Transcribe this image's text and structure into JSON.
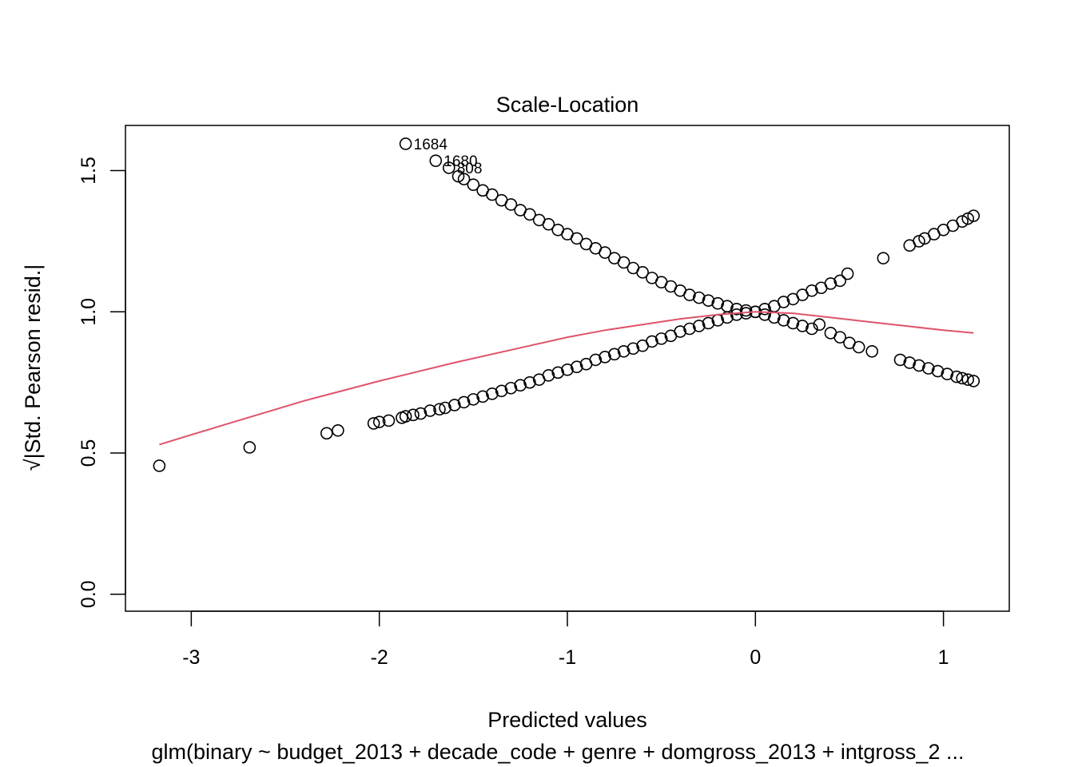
{
  "chart_data": {
    "type": "scatter",
    "title": "Scale-Location",
    "xlabel": "Predicted values",
    "ylabel": "√|Std. Pearson resid.|",
    "subtitle": "glm(binary ~ budget_2013 + decade_code + genre + domgross_2013 + intgross_2 ...",
    "xlim": [
      -3.35,
      1.35
    ],
    "ylim": [
      -0.06,
      1.66
    ],
    "x_ticks": [
      -3,
      -2,
      -1,
      0,
      1
    ],
    "y_ticks": [
      0.0,
      0.5,
      1.0,
      1.5
    ],
    "x_tick_labels": [
      "-3",
      "-2",
      "-1",
      "0",
      "1"
    ],
    "y_tick_labels": [
      "0.0",
      "0.5",
      "1.0",
      "1.5"
    ],
    "grid": false,
    "series": [
      {
        "kind": "points",
        "x": [
          -3.17,
          -2.69,
          -2.28,
          -2.22,
          -2.03,
          -2.0,
          -1.95,
          -1.88,
          -1.86,
          -1.82,
          -1.78,
          -1.73,
          -1.68,
          -1.65,
          -1.6,
          -1.55,
          -1.5,
          -1.45,
          -1.4,
          -1.35,
          -1.3,
          -1.25,
          -1.2,
          -1.15,
          -1.1,
          -1.05,
          -1.0,
          -0.95,
          -0.9,
          -0.85,
          -0.8,
          -0.75,
          -0.7,
          -0.65,
          -0.6,
          -0.55,
          -0.5,
          -0.45,
          -0.4,
          -0.35,
          -0.3,
          -0.25,
          -0.2,
          -0.15,
          -0.1,
          -0.05,
          0.0,
          0.05,
          0.1,
          0.15,
          0.2,
          0.25,
          0.3,
          0.35,
          0.4,
          0.45,
          0.49,
          0.68,
          0.82,
          0.87,
          0.9,
          0.95,
          1.0,
          1.05,
          1.1,
          1.13,
          1.16
        ],
        "y": [
          0.455,
          0.52,
          0.57,
          0.58,
          0.605,
          0.61,
          0.615,
          0.625,
          0.63,
          0.635,
          0.64,
          0.65,
          0.655,
          0.66,
          0.67,
          0.68,
          0.69,
          0.7,
          0.71,
          0.72,
          0.73,
          0.74,
          0.75,
          0.76,
          0.775,
          0.785,
          0.795,
          0.805,
          0.815,
          0.83,
          0.84,
          0.85,
          0.86,
          0.87,
          0.88,
          0.895,
          0.905,
          0.915,
          0.93,
          0.94,
          0.95,
          0.96,
          0.97,
          0.98,
          0.99,
          0.995,
          1.0,
          1.01,
          1.02,
          1.035,
          1.045,
          1.06,
          1.075,
          1.085,
          1.1,
          1.11,
          1.135,
          1.19,
          1.235,
          1.25,
          1.26,
          1.275,
          1.29,
          1.305,
          1.32,
          1.33,
          1.34
        ]
      },
      {
        "kind": "points",
        "x": [
          -1.86,
          -1.7,
          -1.63,
          -1.58,
          -1.55,
          -1.5,
          -1.45,
          -1.4,
          -1.35,
          -1.3,
          -1.25,
          -1.2,
          -1.15,
          -1.1,
          -1.05,
          -1.0,
          -0.95,
          -0.9,
          -0.85,
          -0.8,
          -0.75,
          -0.7,
          -0.65,
          -0.6,
          -0.55,
          -0.5,
          -0.45,
          -0.4,
          -0.35,
          -0.3,
          -0.25,
          -0.2,
          -0.15,
          -0.1,
          -0.05,
          0.0,
          0.05,
          0.1,
          0.15,
          0.2,
          0.25,
          0.3,
          0.34,
          0.4,
          0.45,
          0.5,
          0.55,
          0.62,
          0.77,
          0.82,
          0.87,
          0.92,
          0.97,
          1.02,
          1.07,
          1.1,
          1.13,
          1.16
        ],
        "y": [
          1.595,
          1.535,
          1.51,
          1.48,
          1.47,
          1.45,
          1.43,
          1.415,
          1.395,
          1.38,
          1.36,
          1.345,
          1.325,
          1.31,
          1.29,
          1.275,
          1.26,
          1.24,
          1.225,
          1.21,
          1.19,
          1.175,
          1.155,
          1.14,
          1.12,
          1.105,
          1.09,
          1.075,
          1.06,
          1.05,
          1.04,
          1.03,
          1.02,
          1.01,
          1.005,
          1.0,
          0.99,
          0.98,
          0.97,
          0.96,
          0.95,
          0.94,
          0.955,
          0.925,
          0.91,
          0.89,
          0.875,
          0.86,
          0.83,
          0.82,
          0.81,
          0.8,
          0.79,
          0.78,
          0.77,
          0.765,
          0.76,
          0.755
        ]
      },
      {
        "kind": "line",
        "color": "#DF536B",
        "x": [
          -3.17,
          -2.8,
          -2.4,
          -2.0,
          -1.6,
          -1.2,
          -1.0,
          -0.8,
          -0.6,
          -0.4,
          -0.2,
          0.0,
          0.2,
          0.4,
          0.6,
          0.8,
          1.0,
          1.16
        ],
        "y": [
          0.53,
          0.605,
          0.685,
          0.755,
          0.82,
          0.88,
          0.91,
          0.935,
          0.955,
          0.975,
          0.99,
          1.0,
          0.995,
          0.98,
          0.965,
          0.95,
          0.935,
          0.925
        ]
      }
    ],
    "annotations": [
      {
        "label": "1684",
        "x": -1.86,
        "y": 1.595
      },
      {
        "label": "1680",
        "x": -1.7,
        "y": 1.535
      },
      {
        "label": "808",
        "x": -1.63,
        "y": 1.51
      }
    ]
  }
}
